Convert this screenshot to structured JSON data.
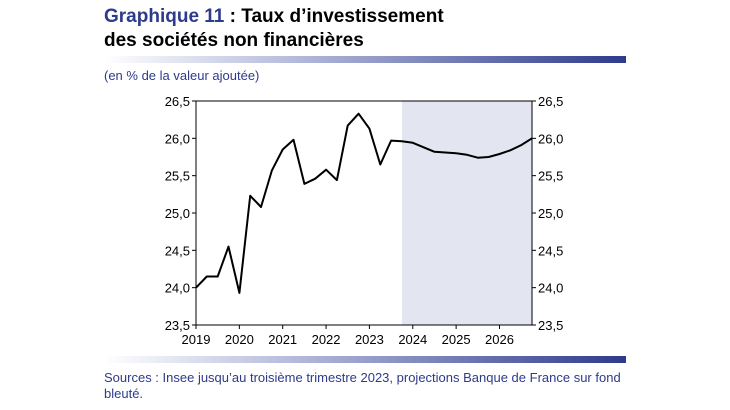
{
  "header": {
    "title_prefix": "Graphique 11",
    "title_rest": " : Taux d’investissement",
    "title_line2": "des sociétés non financières"
  },
  "unit_note": "(en % de la valeur ajoutée)",
  "source": "Sources : Insee jusqu’au troisième trimestre 2023, projections Banque de France sur fond bleuté.",
  "colors": {
    "accent": "#2e3a8c",
    "projection_bg": "#e3e5f1",
    "line": "#000000"
  },
  "chart_data": {
    "type": "line",
    "title": "Graphique 11 : Taux d’investissement des sociétés non financières",
    "ylabel": "(en % de la valeur ajoutée)",
    "ylim": [
      23.5,
      26.5
    ],
    "yticks": [
      "23,5",
      "24,0",
      "24,5",
      "25,0",
      "25,5",
      "26,0",
      "26,5"
    ],
    "ytick_values": [
      23.5,
      24.0,
      24.5,
      25.0,
      25.5,
      26.0,
      26.5
    ],
    "xlim": [
      2019.0,
      2026.75
    ],
    "xticks": [
      "2019",
      "2020",
      "2021",
      "2022",
      "2023",
      "2024",
      "2025",
      "2026"
    ],
    "xtick_values": [
      2019,
      2020,
      2021,
      2022,
      2023,
      2024,
      2025,
      2026
    ],
    "projection_start": 2023.75,
    "grid": false,
    "series": [
      {
        "x": [
          2019.0,
          2019.25,
          2019.5,
          2019.75,
          2020.0,
          2020.25,
          2020.5,
          2020.75,
          2021.0,
          2021.25,
          2021.5,
          2021.75,
          2022.0,
          2022.25,
          2022.5,
          2022.75,
          2023.0,
          2023.25,
          2023.5,
          2023.75,
          2024.0,
          2024.25,
          2024.5,
          2024.75,
          2025.0,
          2025.25,
          2025.5,
          2025.75,
          2026.0,
          2026.25,
          2026.5,
          2026.75
        ],
        "values": [
          24.0,
          24.15,
          24.15,
          24.55,
          23.93,
          25.23,
          25.08,
          25.57,
          25.85,
          25.98,
          25.39,
          25.46,
          25.58,
          25.44,
          26.17,
          26.33,
          26.13,
          25.65,
          25.97,
          25.96,
          25.94,
          25.88,
          25.82,
          25.81,
          25.8,
          25.78,
          25.74,
          25.75,
          25.79,
          25.84,
          25.91,
          26.0
        ]
      }
    ]
  }
}
